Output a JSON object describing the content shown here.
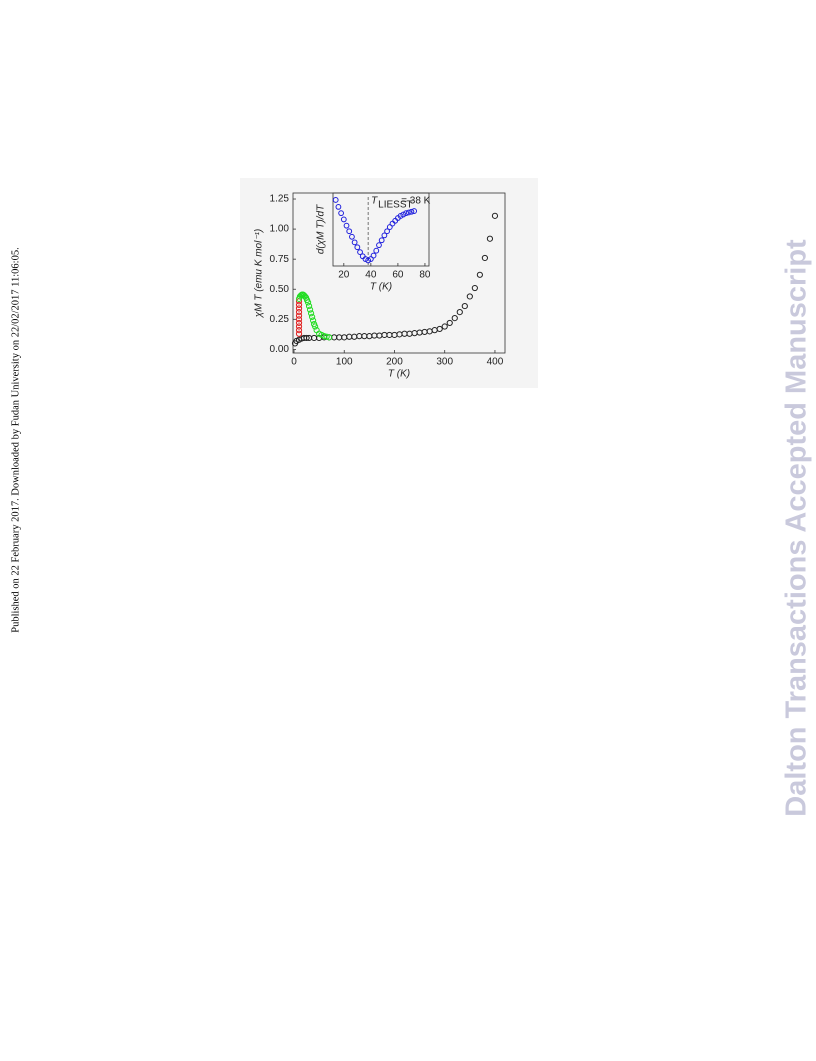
{
  "side_note": "Published on 22 February 2017. Downloaded by Fudan University on 22/02/2017 11:06:05.",
  "watermark": "Dalton Transactions Accepted Manuscript",
  "chart_data": [
    {
      "type": "scatter",
      "x_label": "T (K)",
      "y_label": "χM T (emu K mol⁻¹)",
      "xlim": [
        -2,
        420
      ],
      "ylim": [
        -0.03,
        1.3
      ],
      "xticks": [
        0,
        100,
        200,
        300,
        400
      ],
      "yticks": [
        {
          "value": 0,
          "label": "0.00"
        },
        0.25,
        {
          "value": 0.5,
          "label": "0.50"
        },
        0.75,
        {
          "value": 1,
          "label": "1.00"
        },
        1.25
      ],
      "series": [
        {
          "color": "#222222",
          "x": [
            2,
            5,
            10,
            15,
            20,
            25,
            30,
            40,
            50,
            60,
            70,
            80,
            90,
            100,
            110,
            120,
            130,
            140,
            150,
            160,
            170,
            180,
            190,
            200,
            210,
            220,
            230,
            240,
            250,
            260,
            270,
            280,
            290,
            300,
            310,
            320,
            330,
            340,
            350,
            360,
            370,
            380,
            390,
            400
          ],
          "values": [
            0.05,
            0.07,
            0.08,
            0.09,
            0.095,
            0.095,
            0.095,
            0.095,
            0.095,
            0.1,
            0.1,
            0.1,
            0.1,
            0.1,
            0.105,
            0.105,
            0.11,
            0.11,
            0.11,
            0.115,
            0.115,
            0.12,
            0.12,
            0.12,
            0.125,
            0.13,
            0.13,
            0.135,
            0.14,
            0.145,
            0.15,
            0.16,
            0.17,
            0.19,
            0.22,
            0.26,
            0.31,
            0.36,
            0.44,
            0.51,
            0.62,
            0.76,
            0.92,
            1.11
          ]
        },
        {
          "color": "#e02020",
          "x": [
            10,
            10,
            10,
            10,
            10,
            10,
            10,
            10,
            10,
            10
          ],
          "values": [
            0.4,
            0.37,
            0.34,
            0.31,
            0.28,
            0.25,
            0.22,
            0.19,
            0.16,
            0.13
          ]
        },
        {
          "color": "#22dd22",
          "x": [
            10,
            12,
            14,
            16,
            18,
            20,
            22,
            24,
            26,
            28,
            30,
            32,
            34,
            36,
            38,
            40,
            42,
            45,
            50,
            55,
            60,
            65,
            70
          ],
          "values": [
            0.42,
            0.44,
            0.45,
            0.455,
            0.455,
            0.45,
            0.44,
            0.43,
            0.41,
            0.39,
            0.36,
            0.33,
            0.3,
            0.27,
            0.24,
            0.21,
            0.19,
            0.16,
            0.13,
            0.12,
            0.11,
            0.105,
            0.1
          ]
        }
      ]
    },
    {
      "type": "scatter",
      "x_label": "T (K)",
      "y_label": "d(χM T)/dT",
      "xlim": [
        12,
        83
      ],
      "ylim": [
        0,
        1.05
      ],
      "xticks": [
        20,
        40,
        60,
        80
      ],
      "marker_x": 38,
      "annotation": {
        "symbol": "T",
        "subscript": "LIESST",
        "text": "= 38 K"
      },
      "series": [
        {
          "color": "#2020dd",
          "x": [
            14,
            16,
            18,
            20,
            22,
            24,
            26,
            28,
            30,
            32,
            34,
            36,
            38,
            40,
            42,
            44,
            46,
            48,
            50,
            52,
            54,
            56,
            58,
            60,
            62,
            64,
            66,
            68,
            70,
            72
          ],
          "values": [
            0.95,
            0.85,
            0.76,
            0.67,
            0.58,
            0.5,
            0.42,
            0.34,
            0.27,
            0.2,
            0.14,
            0.1,
            0.08,
            0.1,
            0.15,
            0.22,
            0.3,
            0.37,
            0.44,
            0.5,
            0.56,
            0.61,
            0.65,
            0.69,
            0.72,
            0.74,
            0.76,
            0.77,
            0.78,
            0.79
          ]
        }
      ]
    }
  ]
}
